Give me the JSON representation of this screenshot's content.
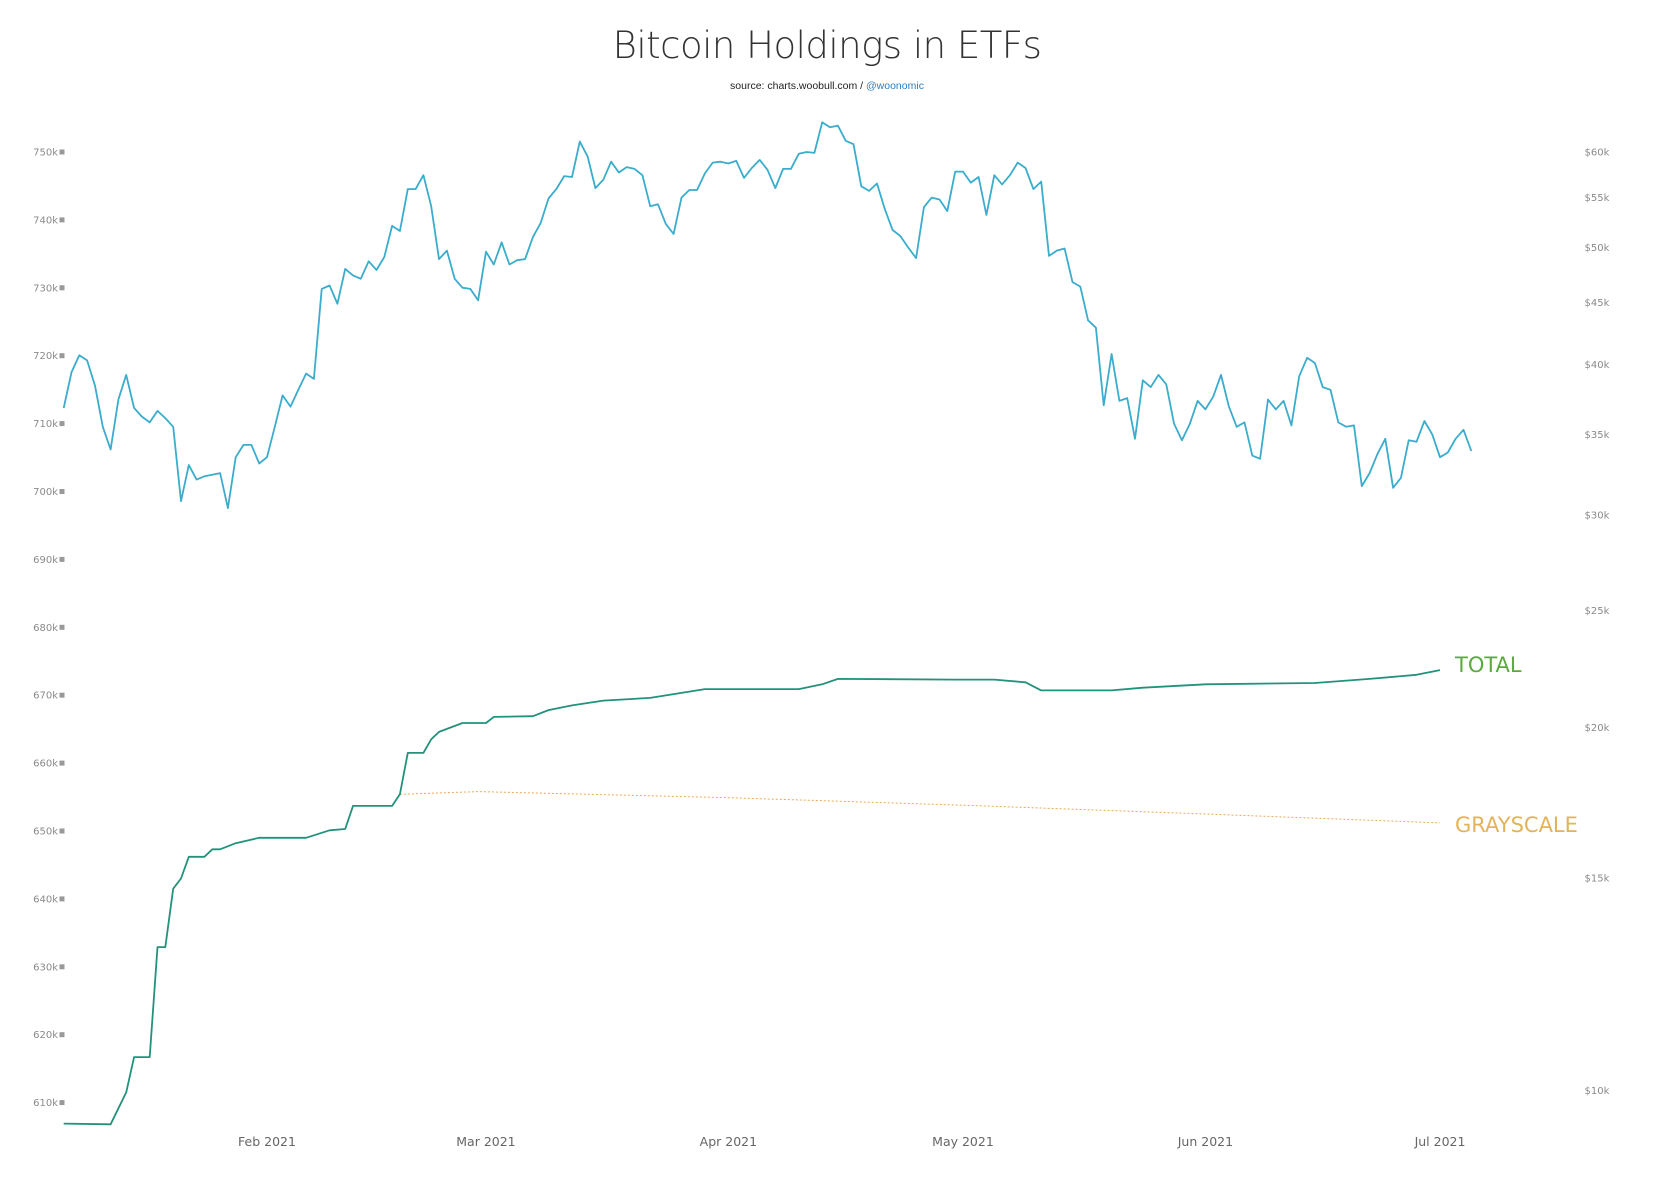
{
  "title": "Bitcoin Holdings in ETFs",
  "subtitle": {
    "source": "source: charts.woobull.com / ",
    "handle": "@woonomic"
  },
  "colors": {
    "price": "#3aaccc",
    "total": "#22927a",
    "total_label": "#5aaa3c",
    "grayscale": "#e8a85a",
    "grayscale_label": "#e3b35a"
  },
  "chart_data": {
    "type": "line",
    "title": "Bitcoin Holdings in ETFs",
    "x_ticks": [
      {
        "date": "2021-02-01",
        "label": "Feb 2021"
      },
      {
        "date": "2021-03-01",
        "label": "Mar 2021"
      },
      {
        "date": "2021-04-01",
        "label": "Apr 2021"
      },
      {
        "date": "2021-05-01",
        "label": "May 2021"
      },
      {
        "date": "2021-06-01",
        "label": "Jun 2021"
      },
      {
        "date": "2021-07-01",
        "label": "Jul 2021"
      }
    ],
    "left_axis": {
      "ticks": [
        750000,
        740000,
        730000,
        720000,
        710000,
        700000,
        690000,
        680000,
        670000,
        660000,
        650000,
        640000,
        630000,
        620000,
        610000
      ],
      "labels": [
        "750k",
        "740k",
        "730k",
        "720k",
        "710k",
        "700k",
        "690k",
        "680k",
        "670k",
        "660k",
        "650k",
        "640k",
        "630k",
        "620k",
        "610k"
      ],
      "range": [
        606000,
        755000
      ]
    },
    "right_axis": {
      "scale": "log",
      "ticks": [
        60000,
        55000,
        50000,
        45000,
        40000,
        35000,
        30000,
        25000,
        20000,
        15000,
        10000
      ],
      "labels": [
        "$60k",
        "$55k",
        "$50k",
        "$45k",
        "$40k",
        "$35k",
        "$30k",
        "$25k",
        "$20k",
        "$15k",
        "$10k"
      ]
    },
    "grid": false,
    "series": [
      {
        "axis": "right",
        "start_date": "2021-01-06",
        "frequency": "daily",
        "values": [
          36.8,
          39.4,
          40.7,
          40.3,
          38.4,
          35.5,
          34.0,
          37.4,
          39.2,
          36.8,
          36.2,
          35.8,
          36.6,
          36.1,
          35.5,
          30.8,
          33.0,
          32.1,
          32.3,
          32.4,
          32.5,
          30.4,
          33.5,
          34.3,
          34.3,
          33.1,
          33.5,
          35.5,
          37.7,
          36.9,
          38.1,
          39.3,
          38.9,
          46.2,
          46.5,
          44.9,
          48.0,
          47.4,
          47.1,
          48.7,
          47.9,
          49.1,
          52.1,
          51.6,
          55.9,
          55.9,
          57.4,
          54.1,
          48.9,
          49.7,
          47.1,
          46.3,
          46.2,
          45.2,
          49.6,
          48.4,
          50.5,
          48.4,
          48.8,
          48.9,
          51.0,
          52.4,
          54.9,
          55.9,
          57.3,
          57.2,
          61.2,
          59.5,
          56.0,
          56.9,
          58.9,
          57.7,
          58.3,
          58.1,
          57.4,
          54.1,
          54.3,
          52.3,
          51.3,
          55.0,
          55.8,
          55.8,
          57.6,
          58.8,
          58.9,
          58.7,
          59.0,
          57.1,
          58.2,
          59.1,
          58.0,
          56.0,
          58.1,
          58.1,
          59.8,
          60.0,
          59.9,
          63.5,
          62.9,
          63.1,
          61.3,
          60.9,
          56.2,
          55.7,
          56.5,
          53.8,
          51.7,
          51.1,
          50.0,
          49.0,
          54.0,
          55.0,
          54.8,
          53.6,
          57.8,
          57.8,
          56.6,
          57.2,
          53.2,
          57.4,
          56.4,
          57.4,
          58.8,
          58.2,
          55.9,
          56.7,
          49.2,
          49.7,
          49.9,
          46.8,
          46.4,
          43.5,
          42.9,
          37.0,
          40.8,
          37.3,
          37.5,
          34.7,
          38.8,
          38.3,
          39.2,
          38.5,
          35.7,
          34.6,
          35.7,
          37.3,
          36.7,
          37.6,
          39.2,
          36.9,
          35.5,
          35.8,
          33.6,
          33.4,
          37.4,
          36.7,
          37.3,
          35.6,
          39.1,
          40.5,
          40.1,
          38.3,
          38.1,
          35.8,
          35.5,
          35.6,
          31.7,
          32.5,
          33.7,
          34.7,
          31.6,
          32.2,
          34.6,
          34.5,
          35.9,
          35.0,
          33.5,
          33.8,
          34.7,
          35.3,
          33.9
        ],
        "unit": "USD thousands"
      },
      {
        "name": "TOTAL",
        "axis": "left",
        "points": [
          [
            "2021-01-06",
            606900
          ],
          [
            "2021-01-12",
            606800
          ],
          [
            "2021-01-14",
            611500
          ],
          [
            "2021-01-15",
            616700
          ],
          [
            "2021-01-17",
            616700
          ],
          [
            "2021-01-18",
            632900
          ],
          [
            "2021-01-19",
            632900
          ],
          [
            "2021-01-20",
            641500
          ],
          [
            "2021-01-21",
            643000
          ],
          [
            "2021-01-22",
            646200
          ],
          [
            "2021-01-24",
            646200
          ],
          [
            "2021-01-25",
            647300
          ],
          [
            "2021-01-26",
            647300
          ],
          [
            "2021-01-28",
            648200
          ],
          [
            "2021-01-31",
            649000
          ],
          [
            "2021-02-06",
            649000
          ],
          [
            "2021-02-09",
            650100
          ],
          [
            "2021-02-11",
            650300
          ],
          [
            "2021-02-12",
            653700
          ],
          [
            "2021-02-17",
            653700
          ],
          [
            "2021-02-18",
            655400
          ],
          [
            "2021-02-19",
            661500
          ],
          [
            "2021-02-21",
            661500
          ],
          [
            "2021-02-22",
            663500
          ],
          [
            "2021-02-23",
            664600
          ],
          [
            "2021-02-26",
            665900
          ],
          [
            "2021-03-01",
            665900
          ],
          [
            "2021-03-02",
            666800
          ],
          [
            "2021-03-07",
            666900
          ],
          [
            "2021-03-09",
            667800
          ],
          [
            "2021-03-12",
            668500
          ],
          [
            "2021-03-16",
            669200
          ],
          [
            "2021-03-22",
            669600
          ],
          [
            "2021-03-29",
            670900
          ],
          [
            "2021-04-10",
            670900
          ],
          [
            "2021-04-13",
            671600
          ],
          [
            "2021-04-15",
            672400
          ],
          [
            "2021-04-30",
            672300
          ],
          [
            "2021-05-05",
            672300
          ],
          [
            "2021-05-09",
            671900
          ],
          [
            "2021-05-11",
            670700
          ],
          [
            "2021-05-20",
            670700
          ],
          [
            "2021-05-24",
            671100
          ],
          [
            "2021-06-01",
            671600
          ],
          [
            "2021-06-15",
            671800
          ],
          [
            "2021-06-22",
            672400
          ],
          [
            "2021-06-28",
            673000
          ],
          [
            "2021-07-01",
            673700
          ]
        ]
      },
      {
        "name": "GRAYSCALE",
        "axis": "left",
        "style": "dotted",
        "points": [
          [
            "2021-02-18",
            655400
          ],
          [
            "2021-02-28",
            655800
          ],
          [
            "2021-04-01",
            654900
          ],
          [
            "2021-05-01",
            653800
          ],
          [
            "2021-06-01",
            652500
          ],
          [
            "2021-07-01",
            651200
          ]
        ]
      }
    ]
  }
}
